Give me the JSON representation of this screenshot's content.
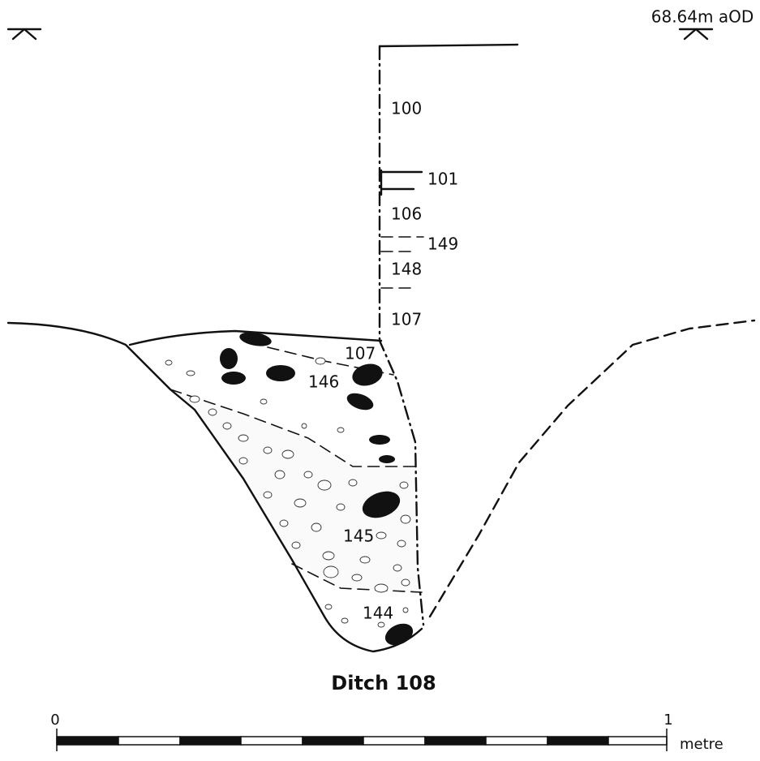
{
  "datum": "68.64m aOD",
  "layers": {
    "l100": "100",
    "l101": "101",
    "l106": "106",
    "l149": "149",
    "l148": "148",
    "l107a": "107",
    "l107b": "107",
    "l146": "146",
    "l145": "145",
    "l144": "144"
  },
  "title": "Ditch 108",
  "scale": {
    "start": "0",
    "end": "1",
    "unit": "metre"
  }
}
